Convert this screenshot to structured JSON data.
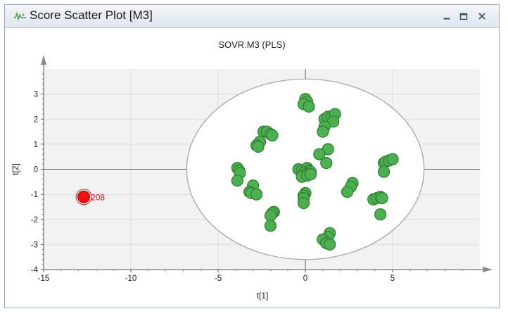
{
  "window": {
    "title": "Score Scatter Plot [M3]",
    "icon": "scatter-plot-icon",
    "controls": [
      "minimize-icon",
      "restore-icon",
      "close-icon"
    ]
  },
  "colors": {
    "point_fill": "#4caf50",
    "point_stroke": "#2e7d32",
    "outlier_fill": "#ee1111",
    "outlier_label": "#d01515",
    "plot_background": "#f2f2f2",
    "ellipse": "#a8a8a8"
  },
  "chart_data": {
    "type": "scatter",
    "title": "SOVR.M3 (PLS)",
    "xlabel": "t[1]",
    "ylabel": "t[2]",
    "xlim": [
      -15,
      10
    ],
    "ylim": [
      -4,
      4
    ],
    "xticks": [
      -15,
      -10,
      -5,
      0,
      5
    ],
    "yticks": [
      -4,
      -3,
      -2,
      -1,
      0,
      1,
      2,
      3
    ],
    "grid": true,
    "ellipse": {
      "cx": 0,
      "cy": 0,
      "rx": 6.8,
      "ry": 3.6
    },
    "points": [
      [
        0,
        2.8
      ],
      [
        0.1,
        2.7
      ],
      [
        -0.1,
        2.6
      ],
      [
        0.2,
        2.5
      ],
      [
        1.1,
        2.0
      ],
      [
        1.3,
        2.1
      ],
      [
        1.5,
        2.1
      ],
      [
        1.7,
        2.2
      ],
      [
        1.6,
        1.9
      ],
      [
        1.1,
        1.7
      ],
      [
        1.0,
        1.5
      ],
      [
        -2.4,
        1.5
      ],
      [
        -2.2,
        1.5
      ],
      [
        -2.0,
        1.4
      ],
      [
        -1.9,
        1.35
      ],
      [
        -2.6,
        1.1
      ],
      [
        -2.8,
        0.95
      ],
      [
        -2.7,
        0.9
      ],
      [
        1.3,
        0.8
      ],
      [
        0.8,
        0.6
      ],
      [
        1.2,
        0.25
      ],
      [
        4.5,
        0.25
      ],
      [
        4.6,
        0.3
      ],
      [
        4.8,
        0.35
      ],
      [
        5.0,
        0.4
      ],
      [
        4.5,
        -0.1
      ],
      [
        -3.9,
        0.05
      ],
      [
        -3.8,
        -0.05
      ],
      [
        -3.75,
        -0.15
      ],
      [
        -3.9,
        -0.45
      ],
      [
        -0.4,
        0.0
      ],
      [
        -0.2,
        -0.05
      ],
      [
        0.1,
        0.05
      ],
      [
        0.2,
        -0.05
      ],
      [
        0.3,
        -0.1
      ],
      [
        -0.1,
        -0.15
      ],
      [
        0.0,
        -0.2
      ],
      [
        -0.2,
        -0.3
      ],
      [
        0.1,
        -0.25
      ],
      [
        0.3,
        -0.2
      ],
      [
        -3.0,
        -0.65
      ],
      [
        -3.2,
        -0.9
      ],
      [
        -3.1,
        -0.95
      ],
      [
        -2.8,
        -1.0
      ],
      [
        2.7,
        -0.55
      ],
      [
        2.6,
        -0.7
      ],
      [
        2.4,
        -0.9
      ],
      [
        0.0,
        -0.95
      ],
      [
        -0.1,
        -1.05
      ],
      [
        -0.1,
        -1.15
      ],
      [
        -0.1,
        -1.35
      ],
      [
        3.9,
        -1.2
      ],
      [
        4.1,
        -1.15
      ],
      [
        4.3,
        -1.1
      ],
      [
        4.4,
        -1.15
      ],
      [
        4.3,
        -1.8
      ],
      [
        -1.8,
        -1.7
      ],
      [
        -1.9,
        -1.75
      ],
      [
        -2.0,
        -1.85
      ],
      [
        -2.0,
        -2.25
      ],
      [
        1.4,
        -2.55
      ],
      [
        1.3,
        -2.7
      ],
      [
        1.0,
        -2.8
      ],
      [
        1.2,
        -2.95
      ],
      [
        1.4,
        -3.0
      ]
    ],
    "outliers": [
      {
        "x": -12.7,
        "y": -1.1,
        "label": "208"
      }
    ]
  }
}
